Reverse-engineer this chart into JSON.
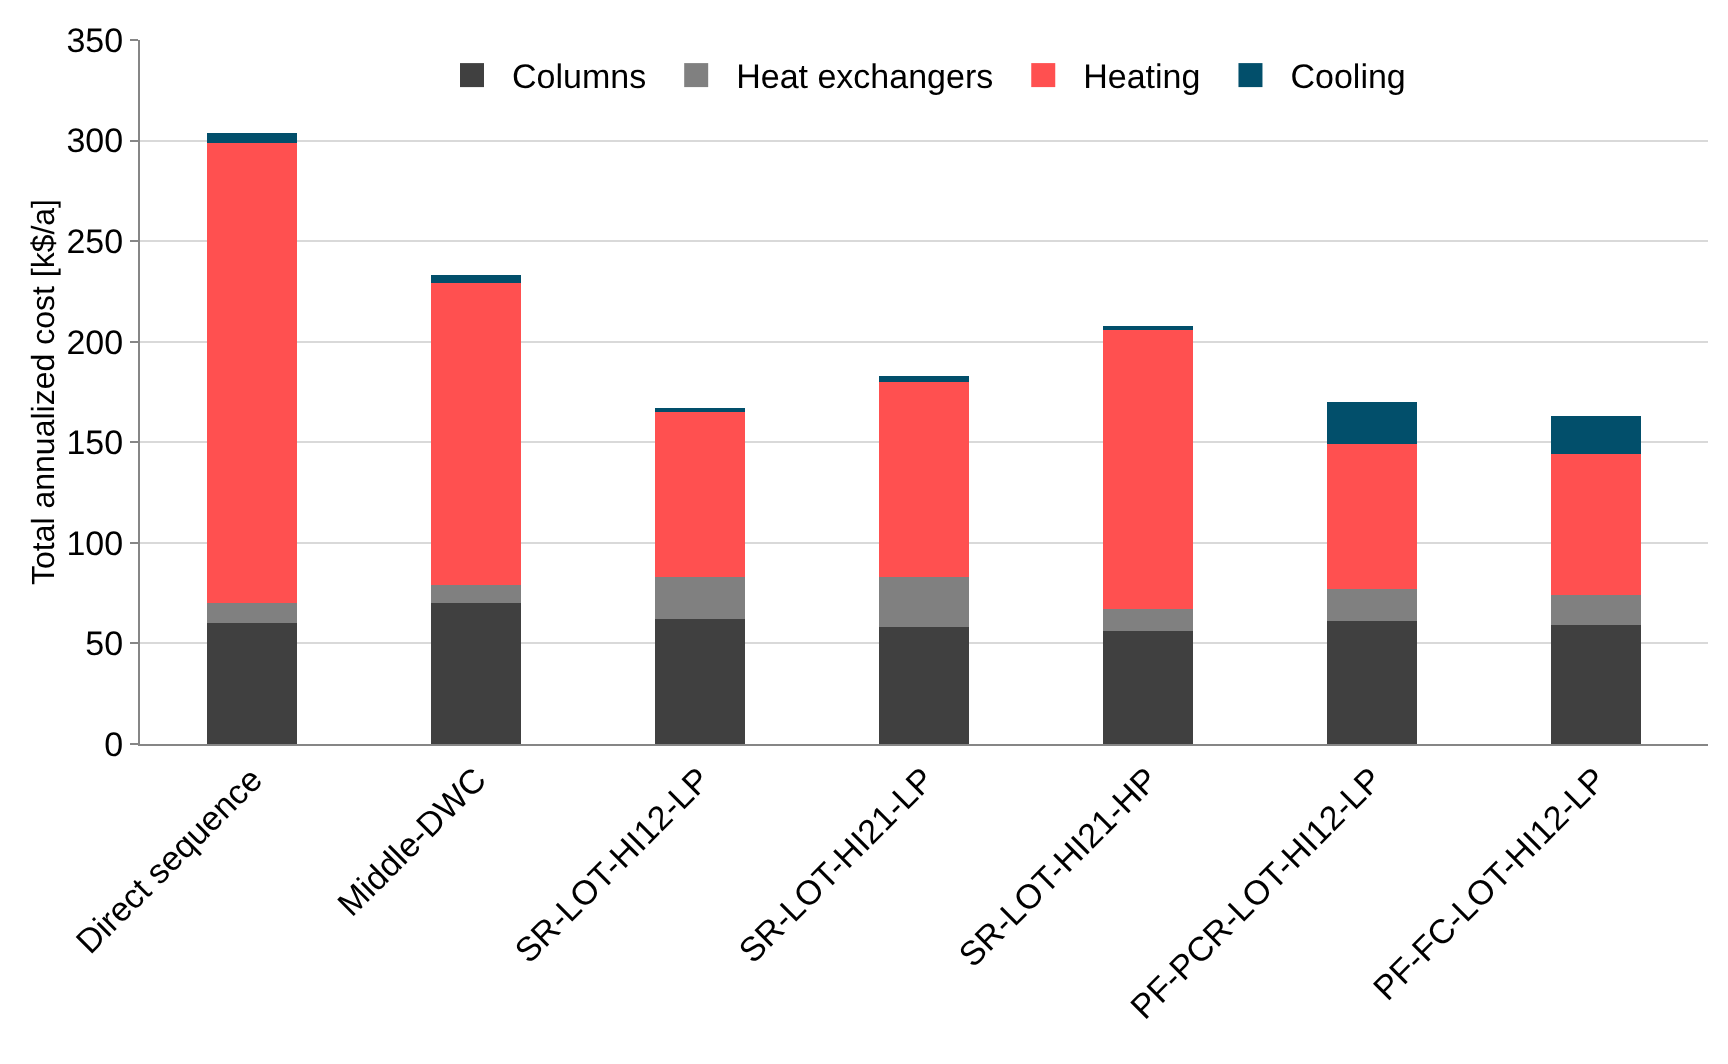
{
  "chart_data": {
    "type": "bar",
    "stacked": true,
    "ylabel": "Total annualized cost [k$/a]",
    "categories": [
      "Direct sequence",
      "Middle-DWC",
      "SR-LOT-HI12-LP",
      "SR-LOT-HI21-LP",
      "SR-LOT-HI21-HP",
      "PF-PCR-LOT-HI12-LP",
      "PF-FC-LOT-HI12-LP"
    ],
    "series": [
      {
        "name": "Columns",
        "color": "#404040",
        "values": [
          60,
          70,
          62,
          58,
          56,
          61,
          59
        ]
      },
      {
        "name": "Heat exchangers",
        "color": "#808080",
        "values": [
          10,
          9,
          21,
          25,
          11,
          16,
          15
        ]
      },
      {
        "name": "Heating",
        "color": "#ff5050",
        "values": [
          229,
          150,
          82,
          97,
          139,
          72,
          70
        ]
      },
      {
        "name": "Cooling",
        "color": "#024f6b",
        "values": [
          5,
          4,
          2,
          3,
          2,
          21,
          19
        ]
      }
    ],
    "ylim": [
      0,
      350
    ],
    "yticks": [
      0,
      50,
      100,
      150,
      200,
      250,
      300,
      350
    ],
    "grid": "y",
    "legend": "top"
  }
}
